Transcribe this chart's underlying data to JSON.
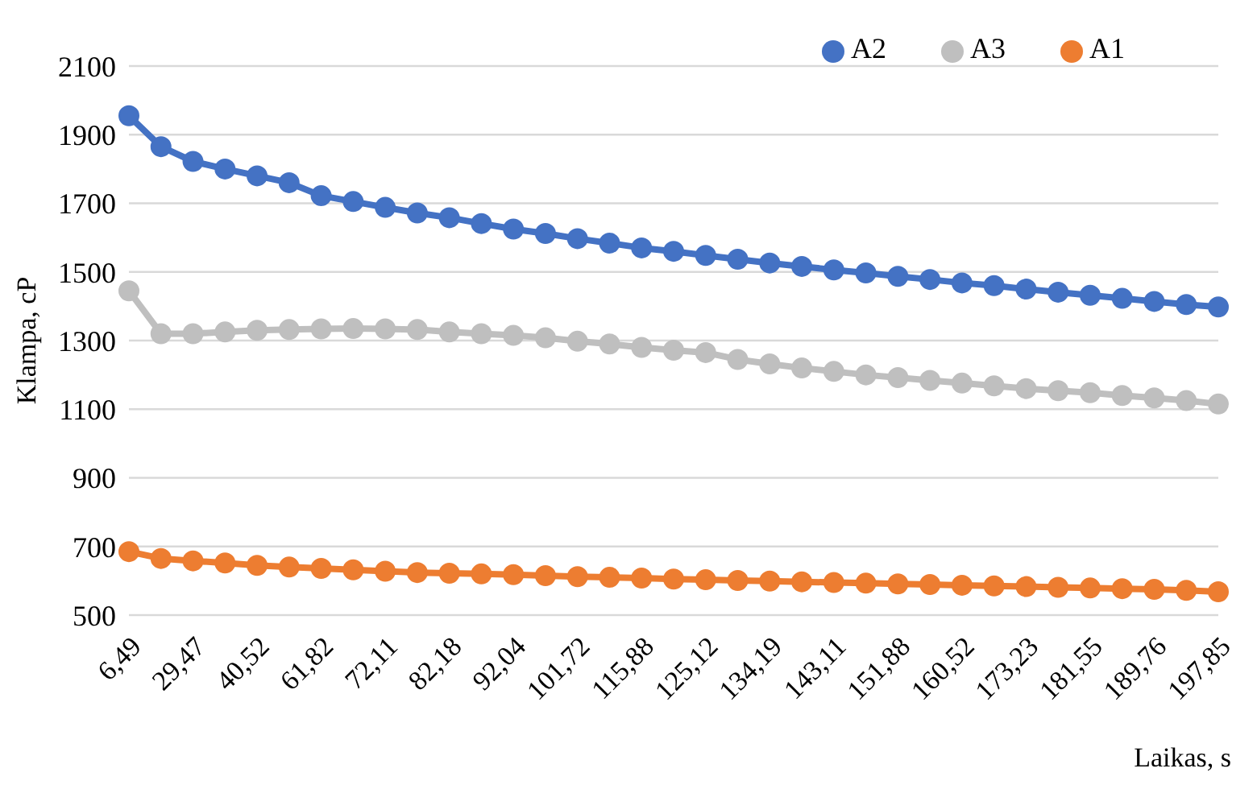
{
  "chart_data": {
    "type": "line",
    "xlabel": "Laikas, s",
    "ylabel": "Klampa, cP",
    "categories": [
      "6,49",
      null,
      "29,47",
      null,
      "40,52",
      null,
      "61,82",
      null,
      "72,11",
      null,
      "82,18",
      null,
      "92,04",
      null,
      "101,72",
      null,
      "115,88",
      null,
      "125,12",
      null,
      "134,19",
      null,
      "143,11",
      null,
      "151,88",
      null,
      "160,52",
      null,
      "173,23",
      null,
      "181,55",
      null,
      "189,76",
      null,
      "197,85"
    ],
    "series": [
      {
        "name": "A2",
        "color": "#4472c4",
        "values": [
          1955,
          1865,
          1822,
          1800,
          1780,
          1760,
          1722,
          1705,
          1688,
          1672,
          1658,
          1641,
          1625,
          1612,
          1597,
          1584,
          1570,
          1560,
          1548,
          1537,
          1526,
          1516,
          1506,
          1497,
          1487,
          1478,
          1468,
          1460,
          1450,
          1441,
          1432,
          1423,
          1414,
          1405,
          1398
        ]
      },
      {
        "name": "A3",
        "color": "#bfbfbf",
        "values": [
          1445,
          1320,
          1320,
          1325,
          1330,
          1332,
          1334,
          1335,
          1334,
          1332,
          1325,
          1320,
          1315,
          1308,
          1298,
          1290,
          1280,
          1272,
          1265,
          1245,
          1232,
          1220,
          1210,
          1200,
          1192,
          1184,
          1176,
          1168,
          1160,
          1154,
          1148,
          1140,
          1133,
          1125,
          1115
        ]
      },
      {
        "name": "A1",
        "color": "#ed7d31",
        "values": [
          685,
          665,
          658,
          652,
          645,
          640,
          636,
          632,
          628,
          624,
          622,
          620,
          618,
          615,
          612,
          610,
          608,
          605,
          603,
          601,
          599,
          597,
          595,
          593,
          591,
          589,
          587,
          585,
          583,
          581,
          579,
          577,
          575,
          572,
          568
        ]
      }
    ],
    "ylim": [
      500,
      2100
    ],
    "yticks": [
      500,
      700,
      900,
      1100,
      1300,
      1500,
      1700,
      1900,
      2100
    ],
    "grid": "y",
    "legend": "top right",
    "marker": "circle",
    "line_style": "solid"
  }
}
